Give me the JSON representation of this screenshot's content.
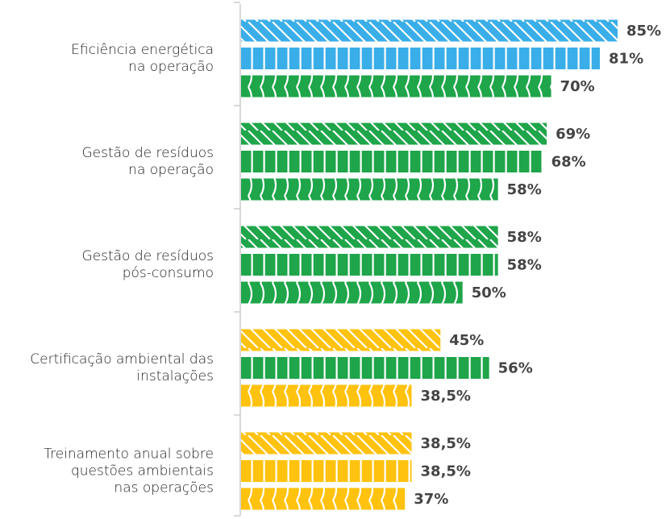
{
  "chart_data": {
    "type": "bar",
    "orientation": "horizontal",
    "categories": [
      [
        "Eficiência energética",
        "na operação"
      ],
      [
        "Gestão de resíduos",
        "na operação"
      ],
      [
        "Gestão de resíduos",
        "pós-consumo"
      ],
      [
        "Certificação ambiental das",
        "instalações"
      ],
      [
        "Treinamento anual sobre",
        "questões ambientais",
        "nas operações"
      ]
    ],
    "series": [
      {
        "pattern": "diagonal",
        "colors": [
          "#3aaee8",
          "#1fa54a",
          "#1fa54a",
          "#ffc20e",
          "#ffc20e"
        ],
        "values": [
          85,
          69,
          58,
          45,
          38.5
        ],
        "value_labels": [
          "85%",
          "69%",
          "58%",
          "45%",
          "38,5%"
        ]
      },
      {
        "pattern": "vertical",
        "colors": [
          "#3aaee8",
          "#1fa54a",
          "#1fa54a",
          "#1fa54a",
          "#ffc20e"
        ],
        "values": [
          81,
          68,
          58,
          56,
          38.5
        ],
        "value_labels": [
          "81%",
          "68%",
          "58%",
          "56%",
          "38,5%"
        ]
      },
      {
        "pattern": "curved",
        "colors": [
          "#1fa54a",
          "#1fa54a",
          "#1fa54a",
          "#ffc20e",
          "#ffc20e"
        ],
        "values": [
          70,
          58,
          50,
          38.5,
          37
        ],
        "value_labels": [
          "70%",
          "58%",
          "50%",
          "38,5%",
          "37%"
        ]
      }
    ],
    "xlim": [
      0,
      85
    ]
  }
}
